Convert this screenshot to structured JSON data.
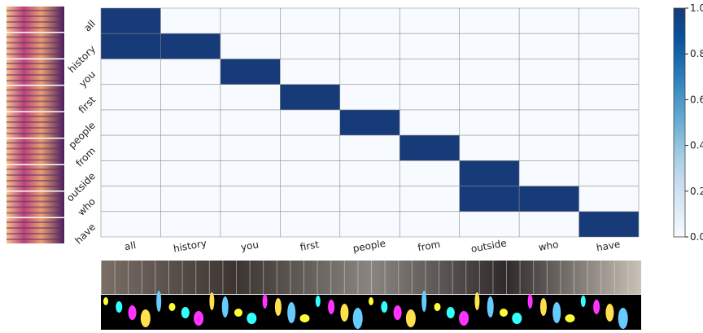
{
  "chart_data": {
    "type": "heatmap",
    "x_categories": [
      "all",
      "history",
      "you",
      "first",
      "people",
      "from",
      "outside",
      "who",
      "have"
    ],
    "y_categories": [
      "all",
      "history",
      "you",
      "first",
      "people",
      "from",
      "outside",
      "who",
      "have"
    ],
    "z": [
      [
        1,
        0,
        0,
        0,
        0,
        0,
        0,
        0,
        0
      ],
      [
        1,
        1,
        0,
        0,
        0,
        0,
        0,
        0,
        0
      ],
      [
        0,
        0,
        1,
        0,
        0,
        0,
        0,
        0,
        0
      ],
      [
        0,
        0,
        0,
        1,
        0,
        0,
        0,
        0,
        0
      ],
      [
        0,
        0,
        0,
        0,
        1,
        0,
        0,
        0,
        0
      ],
      [
        0,
        0,
        0,
        0,
        0,
        1,
        0,
        0,
        0
      ],
      [
        0,
        0,
        0,
        0,
        0,
        0,
        1,
        0,
        0
      ],
      [
        0,
        0,
        0,
        0,
        0,
        0,
        1,
        1,
        0
      ],
      [
        0,
        0,
        0,
        0,
        0,
        0,
        0,
        0,
        1
      ]
    ],
    "colorscale": [
      "#f7fbff",
      "#deebf7",
      "#c6dbef",
      "#9ecae1",
      "#6baed6",
      "#4292c6",
      "#2171b5",
      "#08519c",
      "#173a78"
    ],
    "zlim": [
      0,
      1
    ],
    "zticks": [
      {
        "value": 0,
        "label": "0.0"
      },
      0.2,
      0.4,
      0.6,
      0.8,
      {
        "value": 1,
        "label": "1.0"
      }
    ],
    "grid": true
  }
}
